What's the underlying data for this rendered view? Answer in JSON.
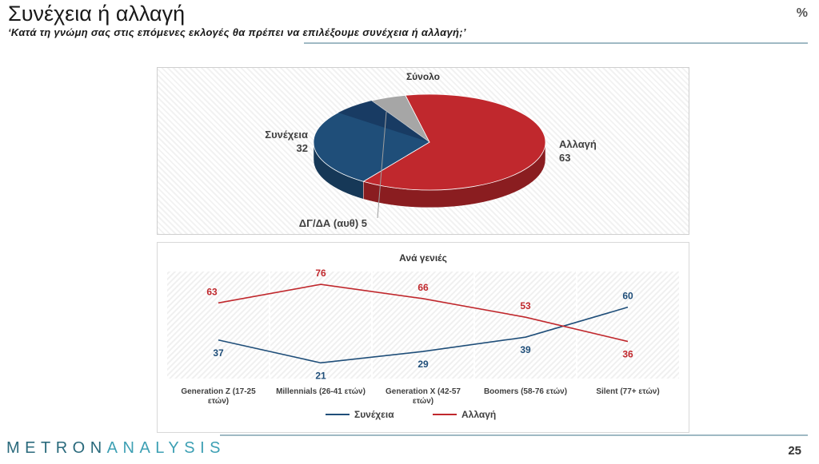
{
  "header": {
    "title": "Συνέχεια ή αλλαγή",
    "subtitle": "‘Κατά τη γνώμη σας στις επόμενες εκλογές θα πρέπει να επιλέξουμε συνέχεια ή αλλαγή;’",
    "unit": "%"
  },
  "footer": {
    "logo_part1": "METRON",
    "logo_part2": "ANALYSIS",
    "page_number": "25"
  },
  "colors": {
    "synecheia": "#1f4e79",
    "allagi": "#c0282d",
    "dk": "#a6a6a6"
  },
  "chart_data": [
    {
      "type": "pie",
      "title": "Σύνολο",
      "labels": [
        "Αλλαγή",
        "Συνέχεια",
        "ΔΓ/ΔΑ (αυθ)"
      ],
      "values": [
        63,
        32,
        5
      ]
    },
    {
      "type": "line",
      "title": "Ανά γενιές",
      "categories": [
        [
          "Generation Z (17-25",
          "ετών)"
        ],
        [
          "Millennials (26-41 ετών)"
        ],
        [
          "Generation X (42-57",
          "ετών)"
        ],
        [
          "Boomers (58-76 ετών)"
        ],
        [
          "Silent (77+ ετών)"
        ]
      ],
      "series": [
        {
          "name": "Συνέχεια",
          "values": [
            37,
            21,
            29,
            39,
            60
          ]
        },
        {
          "name": "Αλλαγή",
          "values": [
            63,
            76,
            66,
            53,
            36
          ]
        }
      ],
      "legend": "bottom"
    }
  ]
}
